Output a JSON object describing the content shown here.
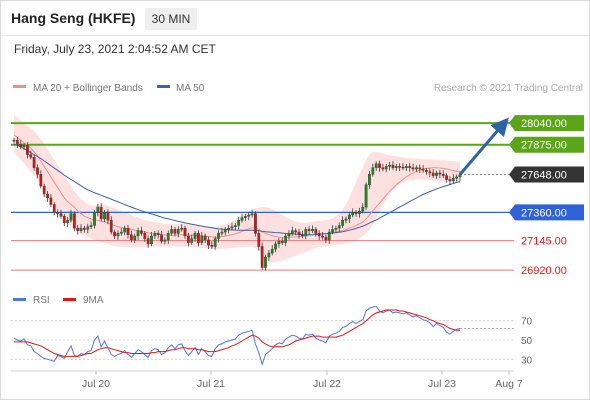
{
  "header": {
    "title": "Hang Seng (HKFE)",
    "timeframe": "30 MIN",
    "datetime": "Friday, July 23, 2021 2:04:52 AM CET"
  },
  "legend": {
    "ma20_bb": "MA 20 + Bollinger Bands",
    "ma50": "MA 50",
    "credit": "Research © 2021 Trading Central",
    "rsi": "RSI",
    "rsi_ma": "9MA"
  },
  "colors": {
    "candle": "#3a3a3a",
    "candle_up": "#1c8a1c",
    "candle_down": "#d21414",
    "ma20": "#f08f8f",
    "bollinger_fill": "#fde0e0",
    "ma50": "#4060a8",
    "resistance": "#5aa618",
    "pivot": "#2f62d6",
    "support": "#ec7a7a",
    "current": "#333333",
    "arrow": "#2e64a6",
    "rsi": "#5575d8",
    "rsi_ma": "#e51414"
  },
  "chart_data": {
    "type": "candlestick",
    "x_ticks": [
      "Jul 20",
      "Jul 21",
      "Jul 22",
      "Jul 23",
      "Aug 7"
    ],
    "ylim": [
      26860,
      28170
    ],
    "levels": [
      {
        "value": 28040,
        "label": "28040.00",
        "kind": "resistance"
      },
      {
        "value": 27875,
        "label": "27875.00",
        "kind": "resistance"
      },
      {
        "value": 27648,
        "label": "27648.00",
        "kind": "current"
      },
      {
        "value": 27360,
        "label": "27360.00",
        "kind": "pivot"
      },
      {
        "value": 27145,
        "label": "27145.00",
        "kind": "support"
      },
      {
        "value": 26920,
        "label": "26920.00",
        "kind": "support"
      }
    ],
    "forecast_arrow": {
      "from": 27648,
      "to": 28030
    },
    "price": [
      27910,
      27880,
      27860,
      27870,
      27800,
      27780,
      27700,
      27650,
      27560,
      27500,
      27470,
      27420,
      27360,
      27350,
      27330,
      27280,
      27300,
      27350,
      27240,
      27220,
      27240,
      27230,
      27250,
      27260,
      27360,
      27400,
      27310,
      27360,
      27300,
      27210,
      27180,
      27200,
      27210,
      27240,
      27190,
      27150,
      27180,
      27220,
      27200,
      27160,
      27120,
      27180,
      27200,
      27190,
      27140,
      27150,
      27200,
      27230,
      27200,
      27230,
      27240,
      27180,
      27130,
      27160,
      27200,
      27130,
      27180,
      27150,
      27110,
      27100,
      27160,
      27200,
      27210,
      27230,
      27240,
      27250,
      27260,
      27300,
      27320,
      27330,
      27340,
      27350,
      27200,
      27100,
      26940,
      27020,
      27050,
      27080,
      27120,
      27140,
      27130,
      27180,
      27200,
      27220,
      27210,
      27190,
      27180,
      27230,
      27220,
      27230,
      27200,
      27180,
      27170,
      27150,
      27210,
      27230,
      27240,
      27260,
      27300,
      27310,
      27340,
      27360,
      27350,
      27370,
      27400,
      27570,
      27650,
      27700,
      27730,
      27700,
      27690,
      27710,
      27720,
      27700,
      27710,
      27705,
      27700,
      27710,
      27700,
      27690,
      27700,
      27690,
      27680,
      27670,
      27660,
      27640,
      27660,
      27650,
      27640,
      27610,
      27600,
      27620,
      27630,
      27648
    ],
    "ma20": [
      27950,
      27930,
      27910,
      27890,
      27870,
      27850,
      27820,
      27790,
      27750,
      27710,
      27670,
      27630,
      27590,
      27550,
      27510,
      27470,
      27440,
      27420,
      27400,
      27370,
      27350,
      27330,
      27320,
      27310,
      27300,
      27300,
      27290,
      27290,
      27280,
      27270,
      27260,
      27250,
      27245,
      27240,
      27235,
      27230,
      27225,
      27220,
      27215,
      27210,
      27205,
      27200,
      27200,
      27195,
      27190,
      27188,
      27186,
      27186,
      27186,
      27188,
      27190,
      27190,
      27188,
      27186,
      27186,
      27184,
      27182,
      27180,
      27176,
      27172,
      27170,
      27172,
      27175,
      27180,
      27185,
      27190,
      27196,
      27205,
      27215,
      27225,
      27235,
      27243,
      27240,
      27230,
      27210,
      27200,
      27190,
      27183,
      27176,
      27170,
      27168,
      27168,
      27170,
      27172,
      27174,
      27176,
      27178,
      27182,
      27186,
      27190,
      27192,
      27193,
      27194,
      27195,
      27200,
      27205,
      27210,
      27215,
      27222,
      27230,
      27240,
      27250,
      27260,
      27272,
      27286,
      27310,
      27340,
      27370,
      27400,
      27430,
      27460,
      27490,
      27520,
      27545,
      27570,
      27590,
      27610,
      27630,
      27645,
      27660,
      27672,
      27682,
      27690,
      27695,
      27698,
      27700,
      27700,
      27698,
      27695,
      27690,
      27684,
      27678,
      27672,
      27666
    ],
    "bb_upper": [
      28100,
      28080,
      28060,
      28040,
      28020,
      28000,
      27980,
      27950,
      27920,
      27880,
      27840,
      27800,
      27760,
      27720,
      27680,
      27640,
      27600,
      27560,
      27520,
      27490,
      27460,
      27440,
      27420,
      27410,
      27410,
      27420,
      27420,
      27420,
      27410,
      27400,
      27390,
      27380,
      27370,
      27360,
      27350,
      27340,
      27330,
      27320,
      27310,
      27300,
      27295,
      27290,
      27285,
      27280,
      27276,
      27272,
      27270,
      27270,
      27270,
      27272,
      27275,
      27275,
      27272,
      27268,
      27265,
      27262,
      27258,
      27254,
      27250,
      27250,
      27252,
      27256,
      27262,
      27270,
      27280,
      27292,
      27306,
      27322,
      27338,
      27354,
      27368,
      27380,
      27390,
      27395,
      27400,
      27400,
      27395,
      27385,
      27370,
      27355,
      27340,
      27325,
      27310,
      27300,
      27290,
      27285,
      27280,
      27282,
      27286,
      27290,
      27292,
      27294,
      27296,
      27298,
      27305,
      27315,
      27330,
      27350,
      27380,
      27420,
      27470,
      27530,
      27590,
      27650,
      27700,
      27760,
      27800,
      27820,
      27820,
      27815,
      27808,
      27800,
      27795,
      27790,
      27786,
      27782,
      27778,
      27775,
      27772,
      27770,
      27768,
      27766,
      27765,
      27764,
      27763,
      27762,
      27760,
      27758,
      27756,
      27754,
      27752,
      27750,
      27748,
      27746
    ],
    "bb_lower": [
      27820,
      27790,
      27760,
      27730,
      27700,
      27670,
      27640,
      27610,
      27580,
      27540,
      27500,
      27460,
      27420,
      27380,
      27340,
      27300,
      27270,
      27250,
      27230,
      27210,
      27190,
      27180,
      27170,
      27160,
      27150,
      27140,
      27130,
      27130,
      27120,
      27110,
      27105,
      27100,
      27098,
      27096,
      27094,
      27092,
      27092,
      27092,
      27092,
      27094,
      27096,
      27098,
      27100,
      27100,
      27100,
      27100,
      27100,
      27100,
      27100,
      27100,
      27100,
      27100,
      27098,
      27096,
      27094,
      27092,
      27090,
      27088,
      27085,
      27082,
      27080,
      27080,
      27082,
      27084,
      27086,
      27088,
      27090,
      27092,
      27094,
      27096,
      27098,
      27100,
      27090,
      27060,
      27020,
      26990,
      26980,
      26980,
      26982,
      26986,
      26992,
      27000,
      27010,
      27020,
      27030,
      27040,
      27050,
      27060,
      27070,
      27080,
      27090,
      27095,
      27098,
      27100,
      27104,
      27108,
      27112,
      27116,
      27120,
      27125,
      27130,
      27140,
      27150,
      27165,
      27180,
      27200,
      27230,
      27270,
      27320,
      27370,
      27420,
      27460,
      27500,
      27530,
      27555,
      27575,
      27590,
      27600,
      27605,
      27608,
      27610,
      27610,
      27608,
      27606,
      27604,
      27602,
      27600,
      27598,
      27596,
      27594,
      27592,
      27590,
      27588,
      27586
    ],
    "ma50": [
      27880,
      27870,
      27860,
      27845,
      27830,
      27815,
      27800,
      27785,
      27770,
      27752,
      27734,
      27716,
      27698,
      27680,
      27662,
      27644,
      27626,
      27610,
      27594,
      27578,
      27562,
      27546,
      27532,
      27520,
      27510,
      27500,
      27490,
      27480,
      27470,
      27460,
      27450,
      27440,
      27430,
      27420,
      27410,
      27400,
      27390,
      27380,
      27372,
      27364,
      27356,
      27348,
      27340,
      27332,
      27324,
      27316,
      27310,
      27304,
      27298,
      27292,
      27286,
      27280,
      27275,
      27270,
      27265,
      27260,
      27255,
      27250,
      27246,
      27242,
      27238,
      27234,
      27232,
      27230,
      27228,
      27226,
      27225,
      27224,
      27224,
      27224,
      27224,
      27224,
      27222,
      27220,
      27216,
      27212,
      27210,
      27208,
      27206,
      27204,
      27202,
      27200,
      27198,
      27196,
      27194,
      27192,
      27190,
      27190,
      27190,
      27190,
      27192,
      27194,
      27196,
      27198,
      27200,
      27203,
      27206,
      27209,
      27213,
      27218,
      27224,
      27230,
      27238,
      27246,
      27255,
      27266,
      27278,
      27290,
      27302,
      27316,
      27330,
      27344,
      27358,
      27372,
      27386,
      27400,
      27414,
      27428,
      27442,
      27456,
      27470,
      27484,
      27496,
      27508,
      27518,
      27528,
      27538,
      27548,
      27556,
      27564,
      27572,
      27580,
      27588,
      27594
    ],
    "rsi_axis": {
      "ticks": [
        70,
        50,
        30
      ],
      "ylim": [
        20,
        80
      ]
    },
    "rsi": [
      52,
      50,
      49,
      51,
      45,
      44,
      38,
      36,
      33,
      31,
      30,
      29,
      28,
      34,
      33,
      31,
      38,
      44,
      34,
      33,
      36,
      35,
      38,
      39,
      50,
      54,
      43,
      49,
      42,
      35,
      33,
      35,
      36,
      39,
      35,
      32,
      36,
      40,
      38,
      35,
      32,
      39,
      41,
      40,
      35,
      37,
      42,
      45,
      41,
      45,
      46,
      39,
      34,
      38,
      42,
      35,
      41,
      38,
      34,
      33,
      41,
      45,
      46,
      48,
      49,
      50,
      51,
      55,
      57,
      58,
      59,
      60,
      46,
      37,
      25,
      35,
      38,
      41,
      45,
      47,
      46,
      51,
      53,
      55,
      54,
      52,
      51,
      56,
      55,
      56,
      52,
      50,
      49,
      47,
      54,
      56,
      57,
      59,
      63,
      64,
      67,
      69,
      67,
      69,
      71,
      80,
      83,
      84,
      85,
      80,
      78,
      80,
      81,
      78,
      79,
      78,
      77,
      78,
      76,
      74,
      75,
      73,
      71,
      70,
      68,
      64,
      67,
      65,
      63,
      58,
      56,
      59,
      61,
      62
    ],
    "rsi_ma": [
      48,
      48,
      48,
      48,
      48,
      47,
      46,
      45,
      44,
      42,
      40,
      38,
      36,
      35,
      34,
      33,
      33,
      33,
      33,
      33,
      34,
      35,
      36,
      36,
      38,
      40,
      41,
      42,
      42,
      41,
      40,
      39,
      38,
      37,
      37,
      36,
      36,
      36,
      36,
      36,
      36,
      37,
      37,
      38,
      38,
      38,
      39,
      40,
      40,
      41,
      42,
      42,
      41,
      41,
      41,
      40,
      40,
      39,
      38,
      38,
      38,
      39,
      40,
      41,
      42,
      44,
      45,
      47,
      49,
      51,
      53,
      55,
      54,
      52,
      48,
      46,
      44,
      43,
      43,
      43,
      43,
      44,
      45,
      47,
      49,
      50,
      51,
      52,
      53,
      54,
      54,
      54,
      53,
      53,
      53,
      53,
      53,
      54,
      55,
      57,
      59,
      61,
      63,
      65,
      67,
      70,
      73,
      76,
      78,
      79,
      80,
      81,
      81,
      81,
      81,
      80,
      80,
      79,
      78,
      77,
      76,
      75,
      74,
      73,
      71,
      70,
      68,
      67,
      66,
      64,
      62,
      61,
      60,
      60
    ]
  }
}
